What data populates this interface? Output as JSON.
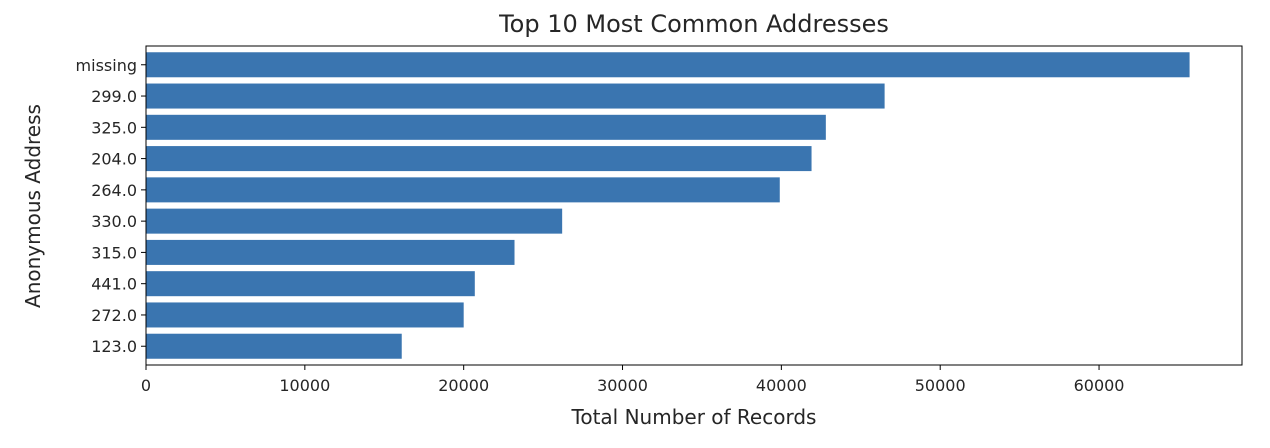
{
  "chart_data": {
    "type": "bar",
    "orientation": "horizontal",
    "title": "Top 10 Most Common Addresses",
    "xlabel": "Total Number of Records",
    "ylabel": "Anonymous Address",
    "categories": [
      "missing",
      "299.0",
      "325.0",
      "204.0",
      "264.0",
      "330.0",
      "315.0",
      "441.0",
      "272.0",
      "123.0"
    ],
    "values": [
      65700,
      46500,
      42800,
      41900,
      39900,
      26200,
      23200,
      20700,
      20000,
      16100
    ],
    "xlim": [
      0,
      69000
    ],
    "xticks": [
      "0",
      "10000",
      "20000",
      "30000",
      "40000",
      "50000",
      "60000"
    ],
    "bar_color": "#3a75b0",
    "grid": false
  }
}
